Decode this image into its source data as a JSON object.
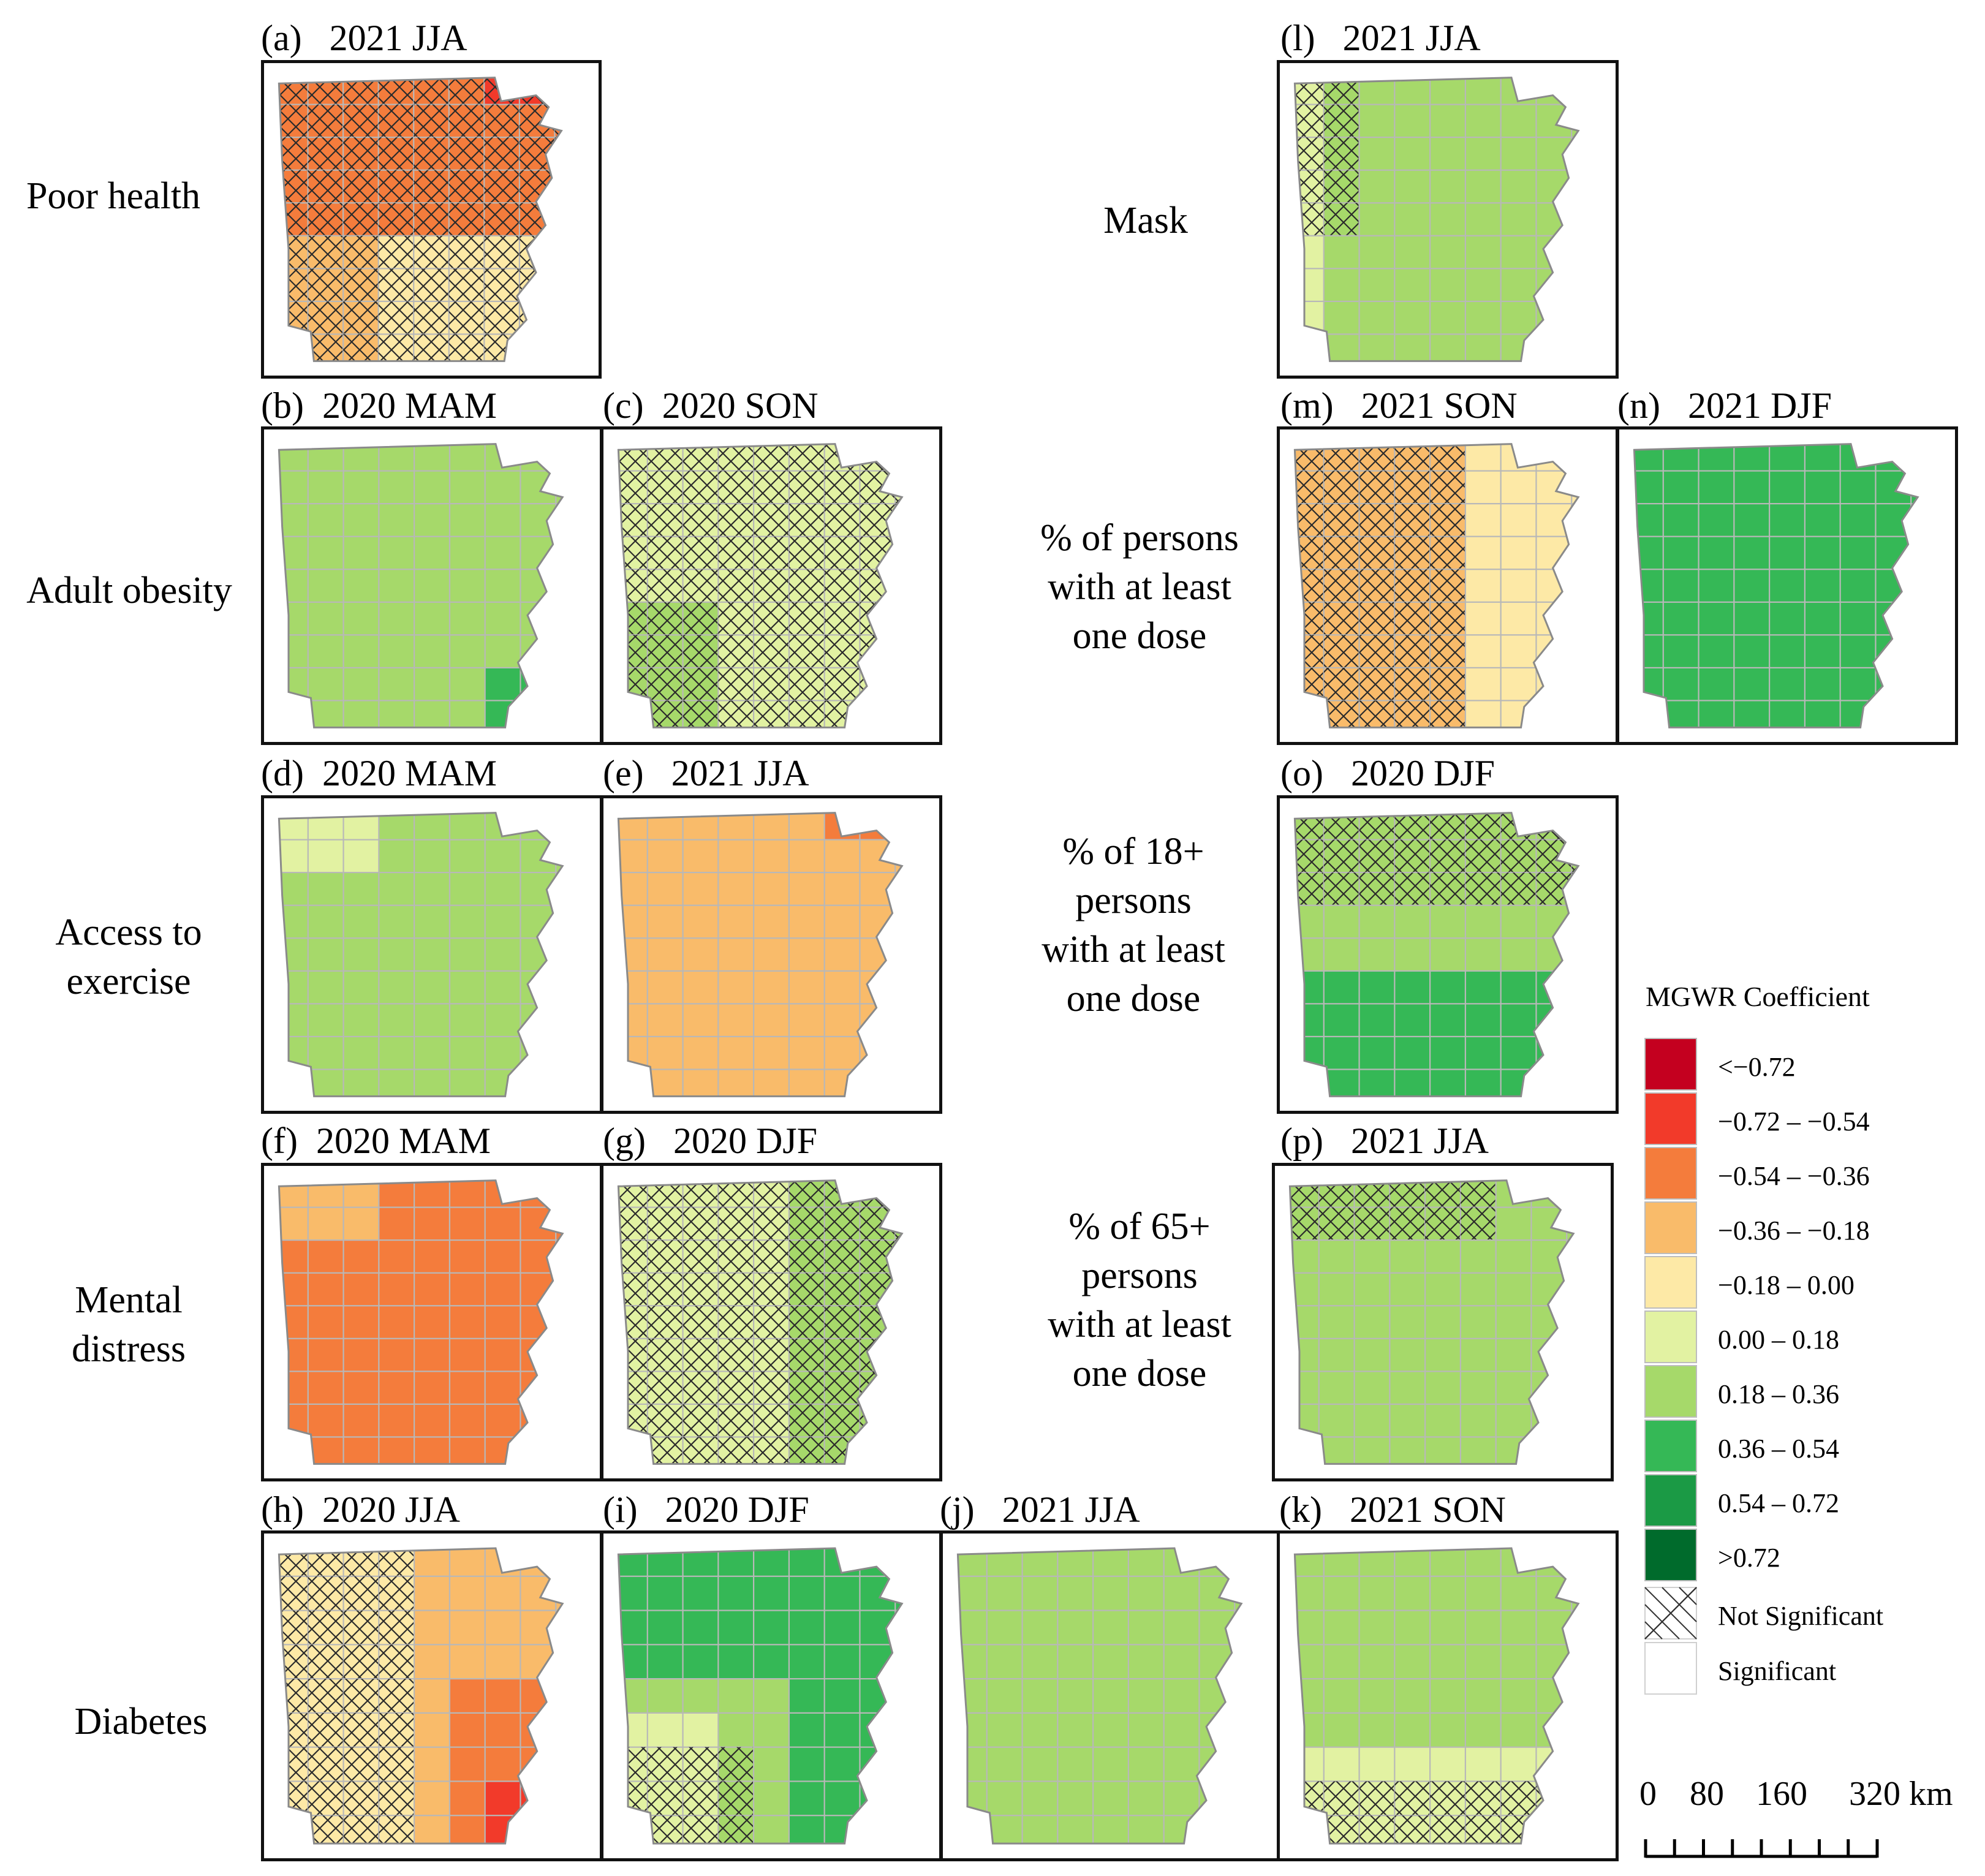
{
  "row_labels": [
    {
      "lines": [
        "Poor health"
      ]
    },
    {
      "lines": [
        "Adult obesity"
      ]
    },
    {
      "lines": [
        "Access to",
        "exercise"
      ]
    },
    {
      "lines": [
        "Mental",
        "distress"
      ]
    },
    {
      "lines": [
        "Diabetes"
      ]
    },
    {
      "lines": [
        "Mask"
      ]
    },
    {
      "lines": [
        "% of persons",
        "with at least",
        "one dose"
      ]
    },
    {
      "lines": [
        "% of 18+",
        "persons",
        "with at least",
        "one dose"
      ]
    },
    {
      "lines": [
        "% of 65+",
        "persons",
        "with at least",
        "one dose"
      ]
    }
  ],
  "panels": [
    {
      "id": "a",
      "letter": "(a)",
      "title": "2021 JJA",
      "variable": "Poor health",
      "base": 4,
      "regions": [
        {
          "type": "band",
          "dir": "n",
          "amount": 0.55,
          "cls": 2
        },
        {
          "type": "sw",
          "cls": 3
        },
        {
          "type": "ne",
          "cls": 1
        }
      ],
      "hatch": "all"
    },
    {
      "id": "b",
      "letter": "(b)",
      "title": "2020 MAM",
      "variable": "Adult obesity",
      "base": 6,
      "regions": [
        {
          "type": "se-tip",
          "cls": 7
        }
      ],
      "hatch": "none"
    },
    {
      "id": "c",
      "letter": "(c)",
      "title": "2020 SON",
      "variable": "Adult obesity",
      "base": 5,
      "regions": [
        {
          "type": "sw",
          "cls": 6
        }
      ],
      "hatch": "all"
    },
    {
      "id": "d",
      "letter": "(d)",
      "title": "2020 MAM",
      "variable": "Access to exercise",
      "base": 6,
      "regions": [
        {
          "type": "nw",
          "cls": 5
        }
      ],
      "hatch": "none"
    },
    {
      "id": "e",
      "letter": "(e)",
      "title": "2021 JJA",
      "variable": "Access to exercise",
      "base": 3,
      "regions": [
        {
          "type": "ne",
          "cls": 2
        }
      ],
      "hatch": "none"
    },
    {
      "id": "f",
      "letter": "(f)",
      "title": "2020 MAM",
      "variable": "Mental distress",
      "base": 2,
      "regions": [
        {
          "type": "nw",
          "cls": 3
        }
      ],
      "hatch": "none"
    },
    {
      "id": "g",
      "letter": "(g)",
      "title": "2020 DJF",
      "variable": "Mental distress",
      "base": 5,
      "regions": [
        {
          "type": "band",
          "dir": "e",
          "amount": 0.3,
          "cls": 6
        }
      ],
      "hatch": "all"
    },
    {
      "id": "h",
      "letter": "(h)",
      "title": "2020 JJA",
      "variable": "Diabetes",
      "base": 3,
      "regions": [
        {
          "type": "band",
          "dir": "w",
          "amount": 0.45,
          "cls": 4
        },
        {
          "type": "band",
          "dir": "se",
          "amount": 0.3,
          "cls": 2
        },
        {
          "type": "se-tip",
          "cls": 1
        }
      ],
      "hatch": "west"
    },
    {
      "id": "i",
      "letter": "(i)",
      "title": "2020 DJF",
      "variable": "Diabetes",
      "base": 6,
      "regions": [
        {
          "type": "band",
          "dir": "n",
          "amount": 0.45,
          "cls": 7
        },
        {
          "type": "band",
          "dir": "e",
          "amount": 0.3,
          "cls": 7
        },
        {
          "type": "sw",
          "cls": 5
        }
      ],
      "hatch": "sw"
    },
    {
      "id": "j",
      "letter": "(j)",
      "title": "2021 JJA",
      "variable": "Diabetes",
      "base": 6,
      "regions": [],
      "hatch": "none"
    },
    {
      "id": "k",
      "letter": "(k)",
      "title": "2021 SON",
      "variable": "Diabetes",
      "base": 6,
      "regions": [
        {
          "type": "band",
          "dir": "s",
          "amount": 0.3,
          "cls": 5
        }
      ],
      "hatch": "south"
    },
    {
      "id": "l",
      "letter": "(l)",
      "title": "2021 JJA",
      "variable": "Mask",
      "base": 6,
      "regions": [
        {
          "type": "band",
          "dir": "w",
          "amount": 0.12,
          "cls": 5
        }
      ],
      "hatch": "west-narrow"
    },
    {
      "id": "m",
      "letter": "(m)",
      "title": "2021 SON",
      "variable": "% of persons with at least one dose",
      "base": 3,
      "regions": [
        {
          "type": "band",
          "dir": "e",
          "amount": 0.35,
          "cls": 4
        }
      ],
      "hatch": "west-wide"
    },
    {
      "id": "n",
      "letter": "(n)",
      "title": "2021 DJF",
      "variable": "% of persons with at least one dose",
      "base": 7,
      "regions": [],
      "hatch": "none"
    },
    {
      "id": "o",
      "letter": "(o)",
      "title": "2020 DJF",
      "variable": "% of 18+ persons with at least one dose",
      "base": 6,
      "regions": [
        {
          "type": "band",
          "dir": "s",
          "amount": 0.4,
          "cls": 7
        }
      ],
      "hatch": "north"
    },
    {
      "id": "p",
      "letter": "(p)",
      "title": "2021 JJA",
      "variable": "% of 65+ persons with at least one dose",
      "base": 6,
      "regions": [],
      "hatch": "north-west"
    }
  ],
  "legend": {
    "title": "MGWR Coefficient",
    "classes": [
      {
        "label": "<−0.72",
        "color": "#c4001f"
      },
      {
        "label": "−0.72 – −0.54",
        "color": "#f23a2a"
      },
      {
        "label": "−0.54 – −0.36",
        "color": "#f47c3c"
      },
      {
        "label": "−0.36 – −0.18",
        "color": "#f9bb6a"
      },
      {
        "label": "−0.18 – 0.00",
        "color": "#fde9a6"
      },
      {
        "label": "0.00 – 0.18",
        "color": "#e2f2a2"
      },
      {
        "label": "0.18 – 0.36",
        "color": "#a6d96a"
      },
      {
        "label": "0.36 – 0.54",
        "color": "#35b856"
      },
      {
        "label": "0.54 – 0.72",
        "color": "#1b9a45"
      },
      {
        "label": ">0.72",
        "color": "#006b2c"
      }
    ],
    "not_significant": "Not Significant",
    "significant": "Significant"
  },
  "scale_bar": {
    "labels": [
      "0",
      "80",
      "160",
      "320 km"
    ]
  }
}
